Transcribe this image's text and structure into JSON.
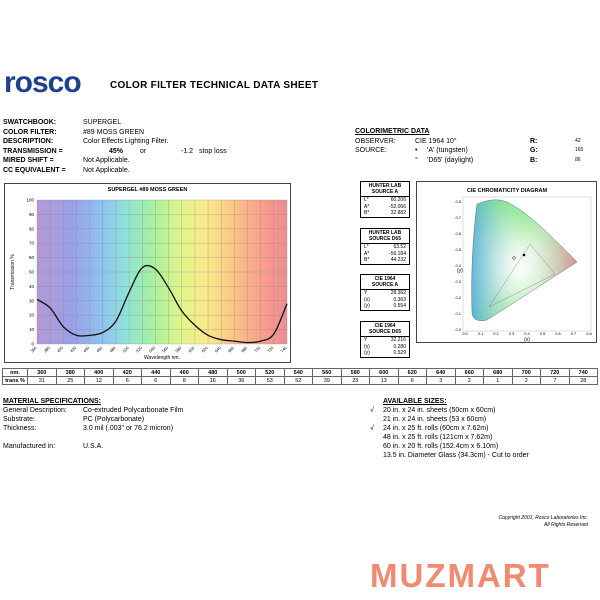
{
  "header": {
    "logo_text": "rosco",
    "title": "COLOR FILTER TECHNICAL DATA SHEET"
  },
  "specs": {
    "swatchbook": {
      "key": "SWATCHBOOK:",
      "value": "SUPERGEL"
    },
    "color_filter": {
      "key": "COLOR FILTER:",
      "value": "#89 MOSS GREEN"
    },
    "description": {
      "key": "DESCRIPTION:",
      "value": "Color Effects Lighting Filter."
    },
    "transmission": {
      "key": "TRANSMISSION =",
      "value": "45%",
      "or": "or",
      "stop": "-1.2",
      "stop_label": "stop loss"
    },
    "mired_shift": {
      "key": "MIRED SHIFT =",
      "value": "Not Applicable."
    },
    "cc_equivalent": {
      "key": "CC EQUIVALENT =",
      "value": "Not Applicable."
    }
  },
  "colorimetric": {
    "heading": "COLORIMETRIC DATA",
    "observer_key": "OBSERVER:",
    "observer_val": "CIE 1964 10°",
    "source_key": "SOURCE:",
    "source_a": "'A' (tungsten)",
    "source_d65": "'D65' (daylight)",
    "r_label": "R:",
    "r_val": "42",
    "g_label": "G:",
    "g_val": "165",
    "b_label": "B:",
    "b_val": "86"
  },
  "hunter": [
    {
      "title1": "HUNTER LAB",
      "title2": "SOURCE A",
      "rows": [
        [
          "L*",
          "60.206"
        ],
        [
          "A*",
          "-52.066"
        ],
        [
          "B*",
          "32.882"
        ]
      ]
    },
    {
      "title1": "HUNTER LAB",
      "title2": "SOURCE D65",
      "rows": [
        [
          "L*",
          "63.52"
        ],
        [
          "A*",
          "-56.184"
        ],
        [
          "B*",
          "44.232"
        ]
      ]
    },
    {
      "title1": "CIE 1964",
      "title2": "SOURCE A",
      "rows": [
        [
          "Y",
          "28.362"
        ],
        [
          "(x)",
          "0.363"
        ],
        [
          "(y)",
          "0.554"
        ]
      ]
    },
    {
      "title1": "CIE 1964",
      "title2": "SOURCE D65",
      "rows": [
        [
          "Y",
          "32.216"
        ],
        [
          "(x)",
          "0.280"
        ],
        [
          "(y)",
          "0.529"
        ]
      ]
    }
  ],
  "cie_diagram": {
    "title": "CIE CHROMATICITY DIAGRAM",
    "xlabel": "(x)",
    "ylabel": "(y)",
    "ticks": [
      "0.0",
      "0.1",
      "0.2",
      "0.3",
      "0.4",
      "0.5",
      "0.6",
      "0.7",
      "0.8"
    ]
  },
  "chart_data": {
    "type": "line",
    "title": "SUPERGEL #89 MOSS GREEN",
    "xlabel": "Wavelength nm.",
    "ylabel": "Transmission %",
    "xlim": [
      360,
      740
    ],
    "ylim": [
      0,
      100
    ],
    "x_ticks": [
      "360",
      "380",
      "400",
      "420",
      "440",
      "460",
      "480",
      "500",
      "520",
      "540",
      "560",
      "580",
      "600",
      "620",
      "640",
      "660",
      "680",
      "700",
      "720",
      "740"
    ],
    "y_ticks": [
      "0",
      "10",
      "20",
      "30",
      "40",
      "50",
      "60",
      "70",
      "80",
      "90",
      "100"
    ],
    "series": [
      {
        "x": [
          360,
          380,
          400,
          420,
          440,
          460,
          480,
          500,
          520,
          540,
          560,
          580,
          600,
          620,
          640,
          660,
          680,
          700,
          720,
          740
        ],
        "y": [
          31,
          25,
          12,
          6,
          6,
          8,
          16,
          36,
          53,
          52,
          39,
          23,
          13,
          6,
          3,
          2,
          1,
          2,
          7,
          28
        ]
      }
    ]
  },
  "transmission_table": {
    "row1_label": "nm.",
    "row2_label": "trans %",
    "nm": [
      "360",
      "380",
      "400",
      "420",
      "440",
      "460",
      "480",
      "500",
      "520",
      "540",
      "560",
      "580",
      "600",
      "620",
      "640",
      "660",
      "680",
      "700",
      "720",
      "740"
    ],
    "trans": [
      "31",
      "25",
      "12",
      "6",
      "6",
      "8",
      "16",
      "36",
      "53",
      "52",
      "39",
      "23",
      "13",
      "6",
      "3",
      "2",
      "1",
      "2",
      "7",
      "28"
    ]
  },
  "material": {
    "heading": "MATERIAL SPECIFICATIONS:",
    "rows": [
      [
        "General Description:",
        "Co-extruded Polycarbonate Film"
      ],
      [
        "Substrate:",
        "PC (Polycarbonate)"
      ],
      [
        "Thickness:",
        "3.0 mil (.003\" or 76.2 micron)"
      ],
      [
        "Manufactured in:",
        "U.S.A."
      ]
    ]
  },
  "available": {
    "heading": "AVAILABLE SIZES:",
    "items": [
      {
        "check": "√",
        "text": "20 in. x 24 in. sheets (50cm x 60cm)"
      },
      {
        "check": "",
        "text": "21 in. x 24 in. sheets (53 x 60cm)"
      },
      {
        "check": "√",
        "text": "24 in. x 25 ft. rolls (60cm x 7.62m)"
      },
      {
        "check": "",
        "text": "48 in. x 25 ft. rolls (121cm x 7.62m)"
      },
      {
        "check": "",
        "text": "60 in. x 20 ft. rolls (152.4cm x 6.10m)"
      },
      {
        "check": "",
        "text": "13.5 in. Diameter Glass (34.3cm) - Cut to order"
      }
    ]
  },
  "footer": {
    "copyright1": "Copyright 2001, Rosco Laboratories Inc.",
    "copyright2": "All Rights Reserved",
    "watermark": "MUZMART"
  }
}
